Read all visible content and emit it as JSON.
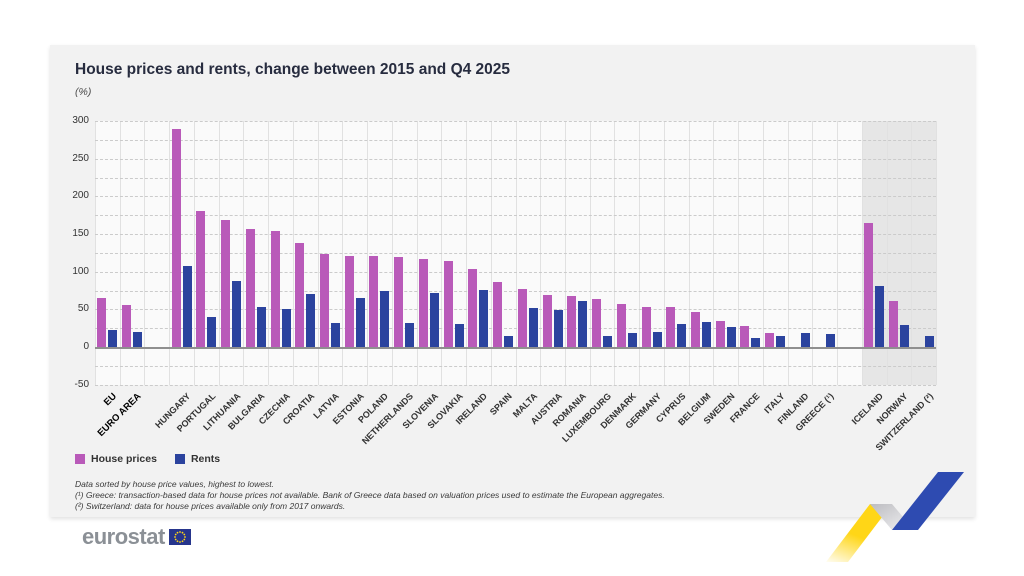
{
  "header": {
    "title": "House prices and rents, change between 2015 and Q4 2025",
    "unit": "(%)"
  },
  "legend": {
    "items": [
      {
        "label": "House prices",
        "color": "#b95ab9"
      },
      {
        "label": "Rents",
        "color": "#2b439e"
      }
    ]
  },
  "footnotes": {
    "line1": "Data sorted by house price values, highest to lowest.",
    "line2": "(¹) Greece: transaction-based data for house prices not available. Bank of Greece data based on valuation prices used to estimate the European aggregates.",
    "line3": "(²) Switzerland: data for house prices available only from 2017 onwards."
  },
  "logo": {
    "text": "eurostat"
  },
  "chart_data": {
    "type": "bar",
    "title": "House prices and rents, change between 2015 and Q4 2025",
    "unit": "(%)",
    "ylim": [
      -50,
      300
    ],
    "ytick_step": 50,
    "minor_grid_step": 25,
    "grid": true,
    "legend_position": "bottom-left",
    "categories": [
      "EU",
      "EURO AREA",
      "HUNGARY",
      "PORTUGAL",
      "LITHUANIA",
      "BULGARIA",
      "CZECHIA",
      "CROATIA",
      "LATVIA",
      "ESTONIA",
      "POLAND",
      "NETHERLANDS",
      "SLOVENIA",
      "SLOVAKIA",
      "IRELAND",
      "SPAIN",
      "MALTA",
      "AUSTRIA",
      "ROMANIA",
      "LUXEMBOURG",
      "DENMARK",
      "GERMANY",
      "CYPRUS",
      "BELGIUM",
      "SWEDEN",
      "FRANCE",
      "ITALY",
      "FINLAND",
      "GREECE (¹)",
      "ICELAND",
      "NORWAY",
      "SWITZERLAND (²)"
    ],
    "bold_categories": [
      "EU",
      "EURO AREA"
    ],
    "gaps_after": [
      1,
      28
    ],
    "highlight": {
      "start_category": "ICELAND",
      "color": "#e6e6e6"
    },
    "series": [
      {
        "name": "House prices",
        "color": "#b95ab9",
        "values": [
          65,
          56,
          290,
          180,
          168,
          157,
          154,
          138,
          124,
          121,
          121,
          119,
          117,
          114,
          103,
          86,
          77,
          69,
          68,
          64,
          57,
          53,
          53,
          47,
          34,
          28,
          19,
          -3,
          null,
          165,
          61,
          null
        ]
      },
      {
        "name": "Rents",
        "color": "#2b439e",
        "values": [
          22,
          20,
          108,
          40,
          88,
          53,
          50,
          71,
          32,
          65,
          75,
          32,
          72,
          30,
          76,
          15,
          52,
          49,
          61,
          15,
          18,
          20,
          30,
          33,
          26,
          12,
          15,
          19,
          17,
          81,
          29,
          15
        ]
      }
    ]
  }
}
